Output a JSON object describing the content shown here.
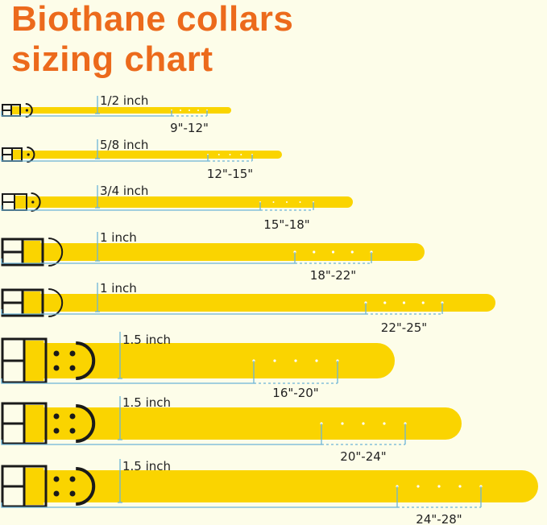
{
  "title": {
    "line1": "Biothane collars",
    "line2": "sizing chart"
  },
  "colors": {
    "title": "#ec6a1c",
    "strap": "#fad400",
    "hardware": "#1a1a1a",
    "measure_line": "#6db4d8",
    "background": "#fdfde9"
  },
  "collars": [
    {
      "width": "1/2 inch",
      "range": "9\"-12\""
    },
    {
      "width": "5/8 inch",
      "range": "12\"-15\""
    },
    {
      "width": "3/4 inch",
      "range": "15\"-18\""
    },
    {
      "width": "1 inch",
      "range": "18\"-22\""
    },
    {
      "width": "1 inch",
      "range": "22\"-25\""
    },
    {
      "width": "1.5 inch",
      "range": "16\"-20\""
    },
    {
      "width": "1.5 inch",
      "range": "20\"-24\""
    },
    {
      "width": "1.5 inch",
      "range": "24\"-28\""
    }
  ]
}
